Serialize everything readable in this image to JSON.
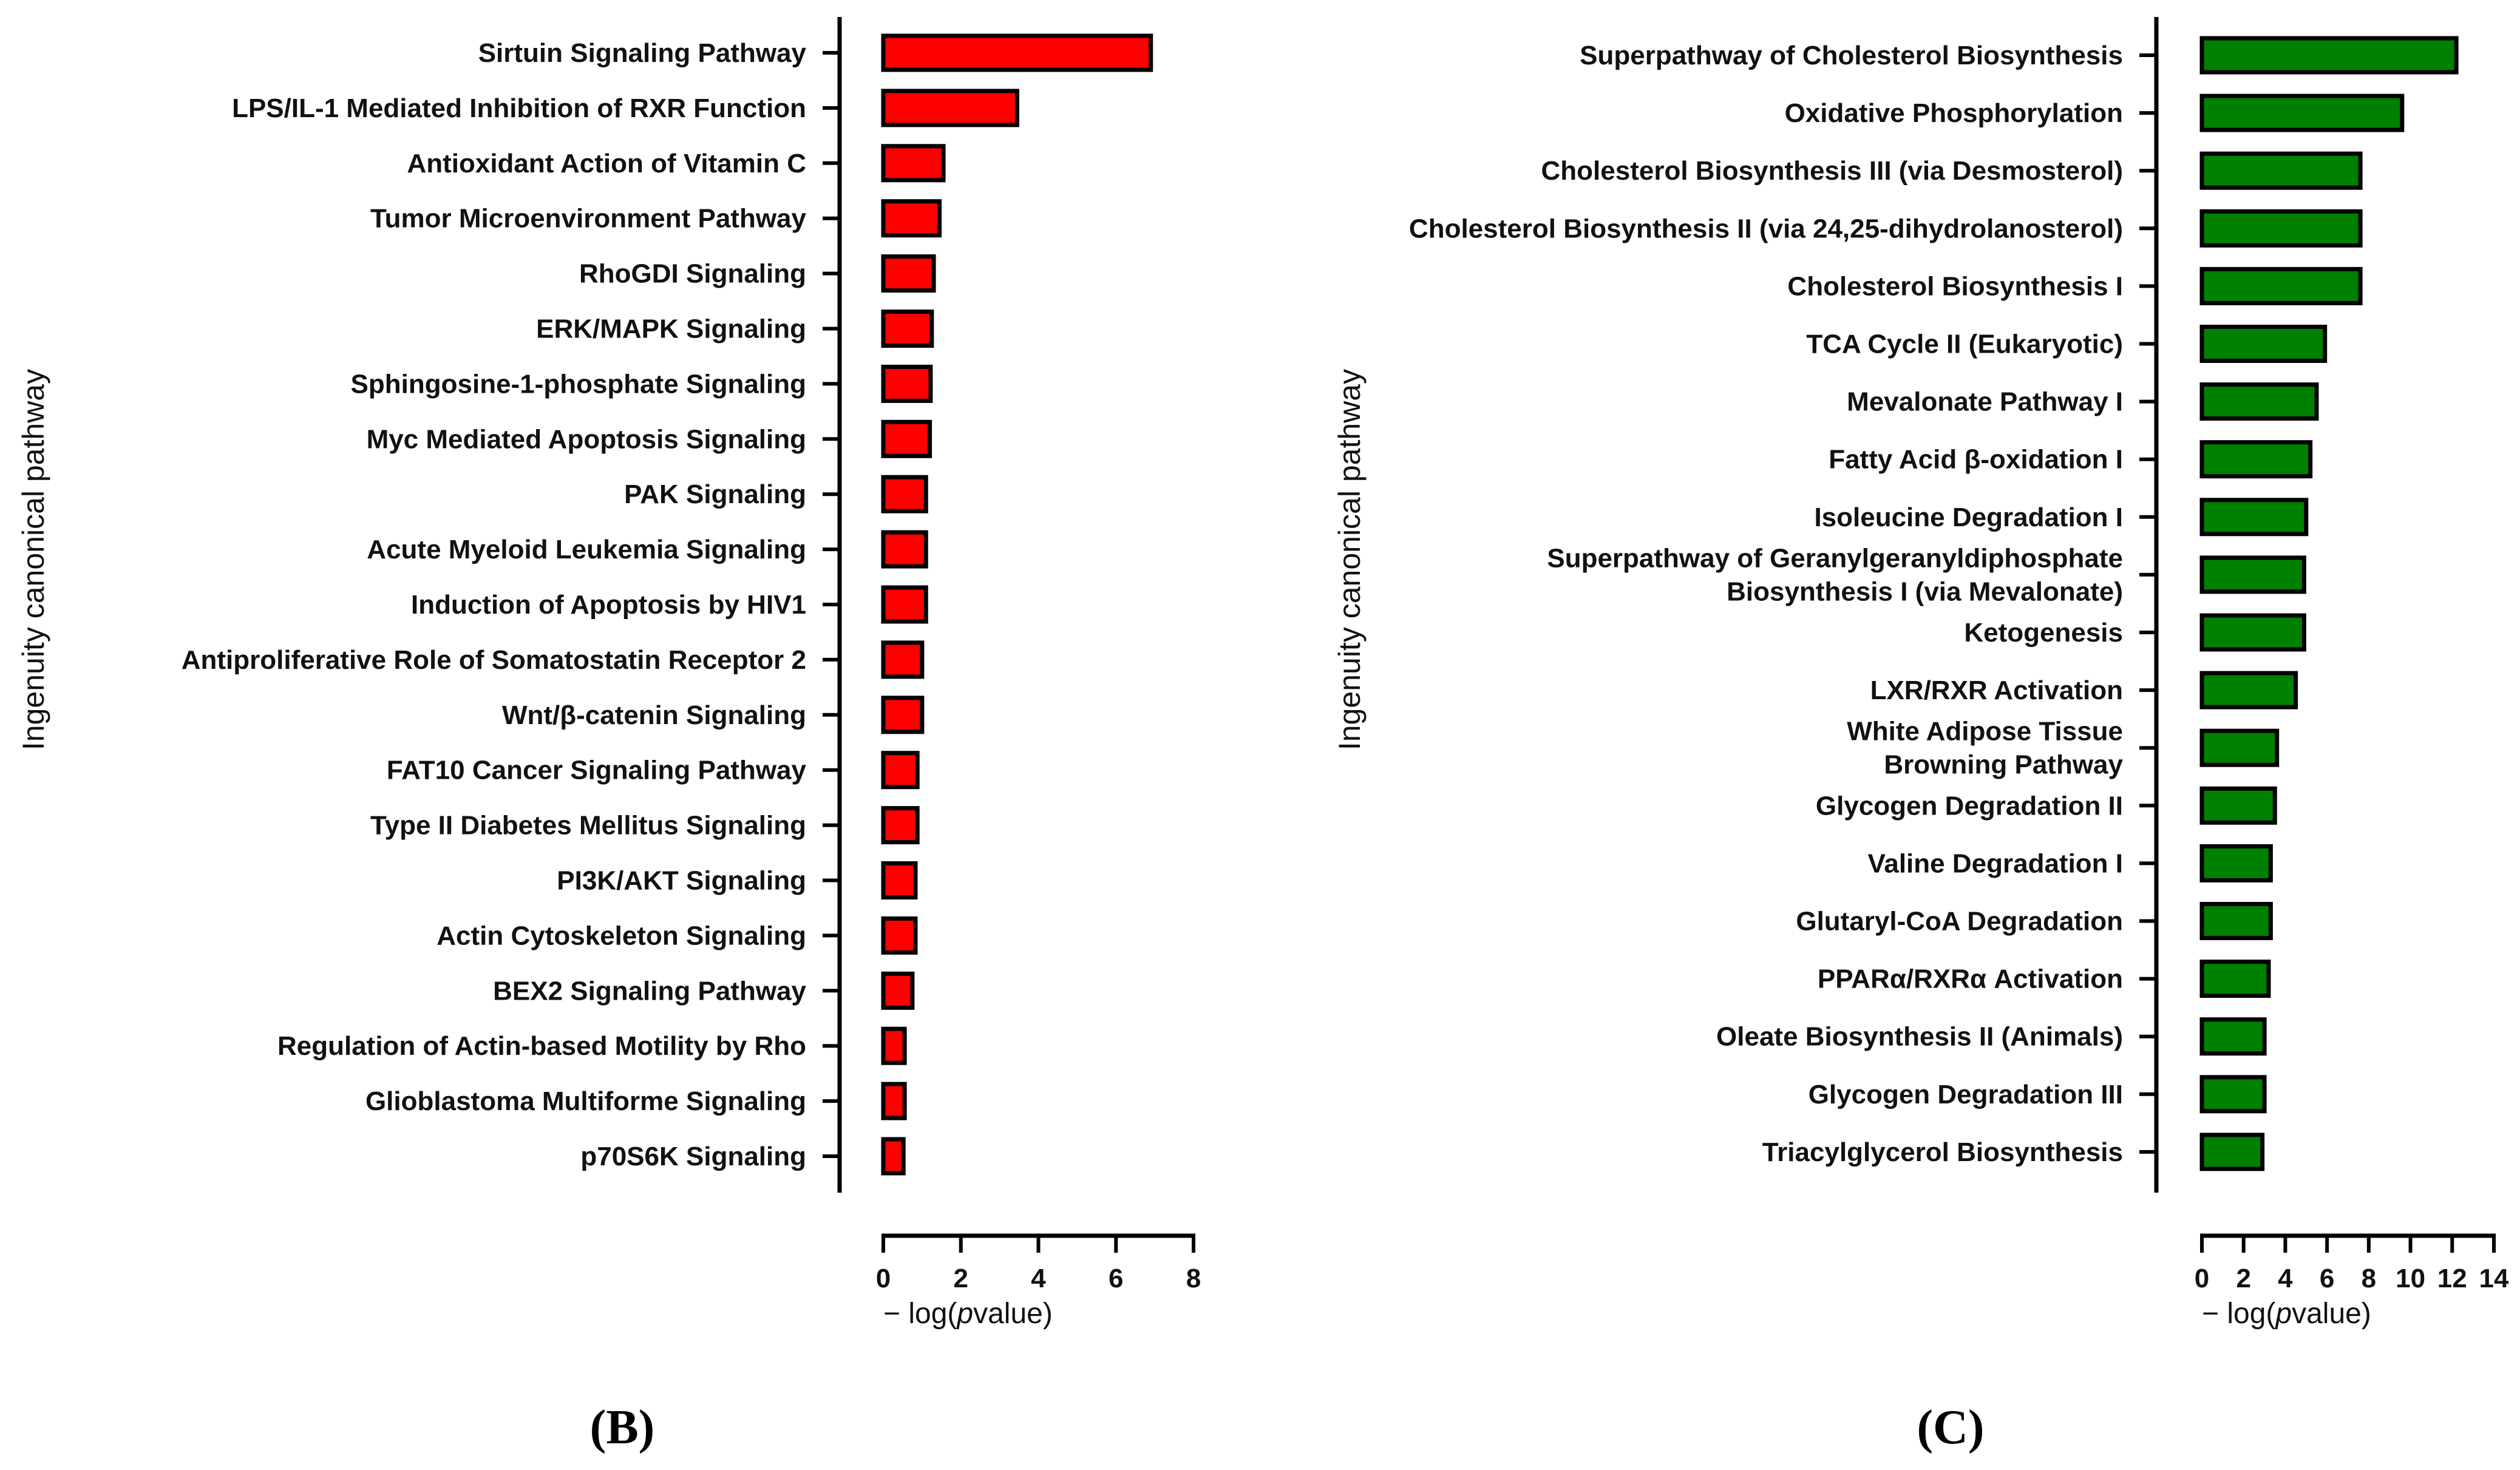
{
  "chart_data": [
    {
      "type": "bar",
      "orientation": "horizontal",
      "panel": "B",
      "color": "#ff0000",
      "ylabel": "Ingenuity canonical pathway",
      "xlabel_prefix": "− log(",
      "xlabel_italic": "p",
      "xlabel_suffix": "value)",
      "xlim": [
        0,
        8
      ],
      "xticks": [
        0,
        2,
        4,
        6,
        8
      ],
      "categories": [
        "Sirtuin Signaling Pathway",
        "LPS/IL-1 Mediated Inhibition of RXR Function",
        "Antioxidant Action of Vitamin C",
        "Tumor Microenvironment Pathway",
        "RhoGDI Signaling",
        "ERK/MAPK Signaling",
        "Sphingosine-1-phosphate Signaling",
        "Myc Mediated Apoptosis Signaling",
        "PAK Signaling",
        "Acute Myeloid Leukemia Signaling",
        "Induction of Apoptosis by HIV1",
        "Antiproliferative Role of Somatostatin Receptor 2",
        "Wnt/β-catenin Signaling",
        "FAT10 Cancer Signaling Pathway",
        "Type II Diabetes Mellitus Signaling",
        "PI3K/AKT Signaling",
        "Actin Cytoskeleton Signaling",
        "BEX2 Signaling Pathway",
        "Regulation of Actin-based Motility by Rho",
        "Glioblastoma Multiforme Signaling",
        "p70S6K Signaling"
      ],
      "values": [
        6.9,
        3.45,
        1.55,
        1.45,
        1.3,
        1.25,
        1.22,
        1.2,
        1.1,
        1.1,
        1.1,
        1.0,
        1.0,
        0.88,
        0.88,
        0.83,
        0.83,
        0.75,
        0.55,
        0.55,
        0.52
      ]
    },
    {
      "type": "bar",
      "orientation": "horizontal",
      "panel": "C",
      "color": "#008000",
      "ylabel": "Ingenuity canonical pathway",
      "xlabel_prefix": "− log(",
      "xlabel_italic": "p",
      "xlabel_suffix": "value)",
      "xlim": [
        0,
        14
      ],
      "xticks": [
        0,
        2,
        4,
        6,
        8,
        10,
        12,
        14
      ],
      "categories": [
        "Superpathway of Cholesterol Biosynthesis",
        "Oxidative Phosphorylation",
        "Cholesterol Biosynthesis III (via Desmosterol)",
        "Cholesterol Biosynthesis II (via 24,25-dihydrolanosterol)",
        "Cholesterol Biosynthesis I",
        "TCA Cycle II (Eukaryotic)",
        "Mevalonate Pathway I",
        "Fatty Acid β-oxidation I",
        "Isoleucine Degradation I",
        [
          "Superpathway of Geranylgeranyldiphosphate",
          "Biosynthesis I (via Mevalonate)"
        ],
        "Ketogenesis",
        "LXR/RXR Activation",
        [
          "White Adipose Tissue",
          "Browning Pathway"
        ],
        "Glycogen Degradation II",
        "Valine Degradation I",
        "Glutaryl-CoA Degradation",
        "PPARα/RXRα Activation",
        "Oleate Biosynthesis II (Animals)",
        "Glycogen Degradation III",
        "Triacylglycerol Biosynthesis"
      ],
      "values": [
        12.2,
        9.6,
        7.6,
        7.6,
        7.6,
        5.9,
        5.5,
        5.2,
        5.0,
        4.9,
        4.9,
        4.5,
        3.6,
        3.5,
        3.3,
        3.3,
        3.2,
        3.0,
        3.0,
        2.9
      ]
    }
  ]
}
